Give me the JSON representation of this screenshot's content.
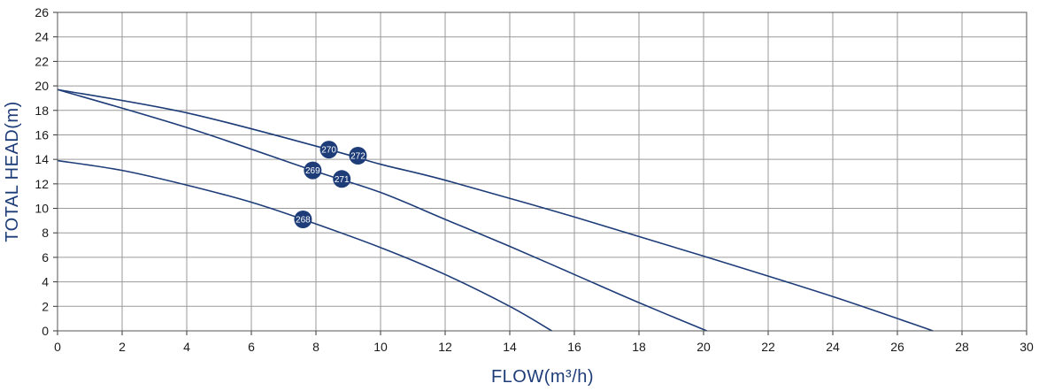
{
  "chart_data": {
    "type": "line",
    "title": "",
    "xlabel": "FLOW(m³/h)",
    "ylabel": "TOTAL HEAD(m)",
    "xlim": [
      0,
      30
    ],
    "ylim": [
      0,
      26
    ],
    "x_ticks": [
      "0",
      "2",
      "4",
      "6",
      "8",
      "10",
      "12",
      "14",
      "16",
      "18",
      "20",
      "22",
      "24",
      "26",
      "28",
      "30"
    ],
    "y_ticks": [
      "0",
      "2",
      "4",
      "6",
      "8",
      "10",
      "12",
      "14",
      "16",
      "18",
      "20",
      "22",
      "24",
      "26"
    ],
    "grid": true,
    "colors": {
      "line": "#1d3c78",
      "grid": "#9a9a9a",
      "axis_title": "#1d3c78",
      "badge": "#1d3c78"
    },
    "series": [
      {
        "points": [
          [
            0,
            13.9
          ],
          [
            2,
            13.1
          ],
          [
            4,
            11.9
          ],
          [
            6,
            10.5
          ],
          [
            7.6,
            9.1
          ],
          [
            10,
            6.8
          ],
          [
            12,
            4.6
          ],
          [
            14,
            2.0
          ],
          [
            15.3,
            0.0
          ]
        ]
      },
      {
        "points": [
          [
            0,
            19.7
          ],
          [
            4,
            16.6
          ],
          [
            7.9,
            13.1
          ],
          [
            10,
            11.3
          ],
          [
            12,
            9.1
          ],
          [
            14,
            6.9
          ],
          [
            16,
            4.6
          ],
          [
            18,
            2.3
          ],
          [
            20.1,
            0.0
          ]
        ]
      },
      {
        "points": [
          [
            0,
            19.7
          ],
          [
            4,
            17.8
          ],
          [
            8.4,
            14.8
          ],
          [
            10,
            13.6
          ],
          [
            12,
            12.3
          ],
          [
            16,
            9.3
          ],
          [
            20,
            6.1
          ],
          [
            24,
            2.8
          ],
          [
            27.1,
            0.0
          ]
        ]
      }
    ],
    "annotations": [
      {
        "label": "268",
        "x": 7.6,
        "y": 9.1
      },
      {
        "label": "269",
        "x": 7.9,
        "y": 13.1
      },
      {
        "label": "270",
        "x": 8.4,
        "y": 14.8
      },
      {
        "label": "271",
        "x": 8.8,
        "y": 12.4
      },
      {
        "label": "272",
        "x": 9.3,
        "y": 14.3
      }
    ]
  }
}
